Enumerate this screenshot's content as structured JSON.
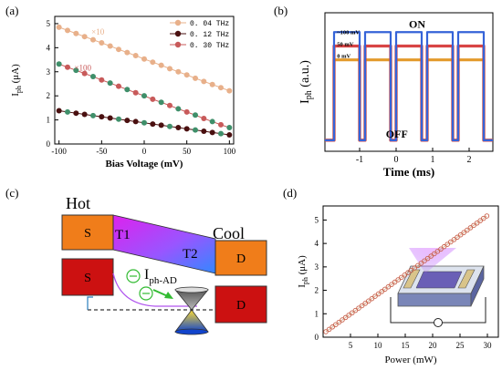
{
  "panels": {
    "a": {
      "tag": "(a)"
    },
    "b": {
      "tag": "(b)"
    },
    "c": {
      "tag": "(c)"
    },
    "d": {
      "tag": "(d)"
    }
  },
  "colors": {
    "a_004": "#e8b08a",
    "a_012": "#4a1010",
    "a_030": "#c85a5a",
    "a_mark_green": "#3f8f6a",
    "b_100": "#3563d8",
    "b_50": "#d84545",
    "b_0": "#e39a2b",
    "d_marker": "#c8604a",
    "d_line": "#d0a080",
    "c_orange": "#f07d1a",
    "c_red": "#cc1111",
    "c_bar_top": "#cc33ff",
    "c_bar_bottom": "#3377ff"
  },
  "chart_data": [
    {
      "panel": "a",
      "type": "scatter",
      "xlabel": "Bias Voltage (mV)",
      "ylabel_main": "I",
      "ylabel_sub": "ph",
      "ylabel_unit": "(μA)",
      "xlim": [
        -105,
        105
      ],
      "ylim": [
        0,
        5.3
      ],
      "xticks": [
        -100,
        -50,
        0,
        50,
        100
      ],
      "yticks": [
        0,
        1,
        2,
        3,
        4,
        5
      ],
      "x": [
        -100,
        -90,
        -80,
        -70,
        -60,
        -50,
        -40,
        -30,
        -20,
        -10,
        0,
        10,
        20,
        30,
        40,
        50,
        60,
        70,
        80,
        90,
        100
      ],
      "series": [
        {
          "name": "0. 04  THz",
          "color_key": "a_004",
          "values": [
            4.85,
            4.72,
            4.59,
            4.46,
            4.33,
            4.2,
            4.07,
            3.93,
            3.8,
            3.67,
            3.53,
            3.4,
            3.27,
            3.13,
            3.0,
            2.87,
            2.73,
            2.6,
            2.47,
            2.34,
            2.21
          ]
        },
        {
          "name": "0. 12  THz",
          "color_key": "a_012",
          "values": [
            1.38,
            1.33,
            1.28,
            1.23,
            1.18,
            1.13,
            1.08,
            1.03,
            0.98,
            0.93,
            0.88,
            0.83,
            0.78,
            0.73,
            0.68,
            0.63,
            0.58,
            0.53,
            0.48,
            0.43,
            0.38
          ]
        },
        {
          "name": "0. 30  THz",
          "color_key": "a_030",
          "values": [
            3.32,
            3.19,
            3.06,
            2.93,
            2.8,
            2.66,
            2.53,
            2.4,
            2.26,
            2.13,
            2.0,
            1.86,
            1.73,
            1.6,
            1.46,
            1.33,
            1.2,
            1.06,
            0.93,
            0.8,
            0.68
          ]
        }
      ],
      "annotations": [
        "×10",
        "×100"
      ]
    },
    {
      "panel": "b",
      "type": "line",
      "xlabel": "Time (ms)",
      "ylabel_main": "I",
      "ylabel_sub": "ph",
      "ylabel_unit": "(a.u.)",
      "xlim": [
        -1.95,
        2.65
      ],
      "ylim": [
        0,
        1
      ],
      "xticks": [
        -1,
        0,
        1,
        2
      ],
      "on_intervals": [
        [
          -1.7,
          -1.0
        ],
        [
          -0.85,
          -0.15
        ],
        [
          0.0,
          0.7
        ],
        [
          0.85,
          1.55
        ],
        [
          1.7,
          2.4
        ]
      ],
      "series": [
        {
          "name": "100 mV",
          "label": "~100 mV",
          "color_key": "b_100",
          "level": 0.86
        },
        {
          "name": "50 mV",
          "label": "50 mV",
          "color_key": "b_50",
          "level": 0.76
        },
        {
          "name": "0 mV",
          "label": "0 mV",
          "color_key": "b_0",
          "level": 0.66
        }
      ],
      "off_level": 0.08,
      "annotations": [
        "ON",
        "OFF"
      ]
    },
    {
      "panel": "d",
      "type": "scatter",
      "xlabel": "Power (mW)",
      "ylabel_main": "I",
      "ylabel_sub": "ph",
      "ylabel_unit": "(μA)",
      "xlim": [
        0,
        32
      ],
      "ylim": [
        0,
        5.6
      ],
      "xticks": [
        5,
        10,
        15,
        20,
        25,
        30
      ],
      "yticks": [
        0,
        1,
        2,
        3,
        4,
        5
      ],
      "points": {
        "x_start": 0.5,
        "x_step": 0.6,
        "count": 50,
        "slope": 0.168,
        "intercept": 0.15
      }
    }
  ],
  "diagram_c": {
    "hot": "Hot",
    "cool": "Cool",
    "t1": "T1",
    "t2": "T2",
    "s_top": "S",
    "s_bottom": "S",
    "d_top": "D",
    "d_bottom": "D",
    "current_main": "I",
    "current_sub": "ph-AD"
  }
}
